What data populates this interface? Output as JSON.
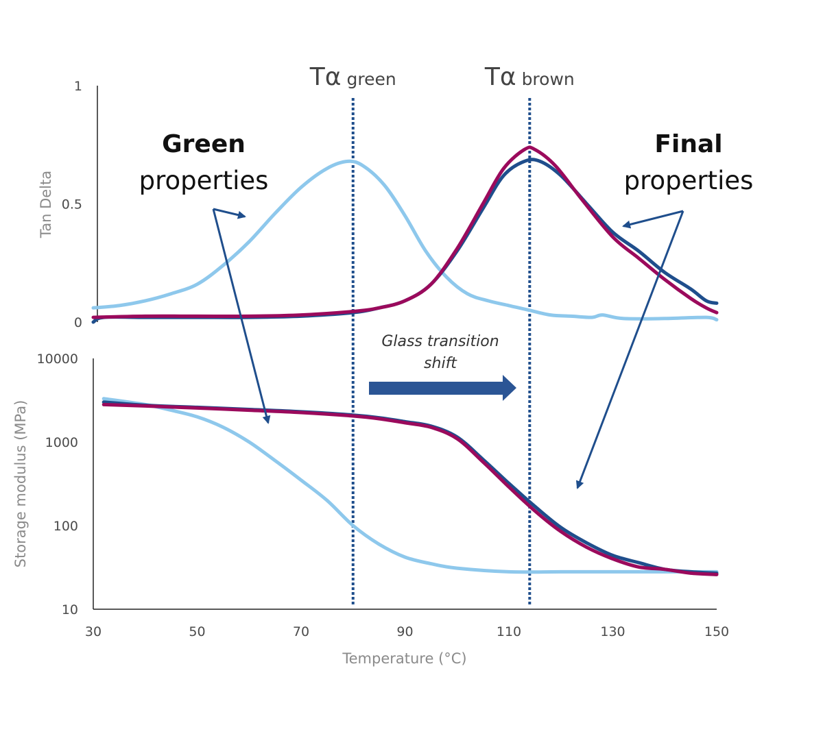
{
  "chart_data": {
    "type": "line",
    "xlabel": "Temperature (°C)",
    "x_ticks": [
      "30",
      "50",
      "70",
      "90",
      "110",
      "130",
      "150"
    ],
    "xlim": [
      30,
      150
    ],
    "colors": {
      "green": "#8ec8ec",
      "brown_dark": "#1f4e8c",
      "brown_magenta": "#9b0a5c",
      "arrow": "#1f4e8c",
      "vline": "#1f4e8c"
    },
    "panels": [
      {
        "name": "tan-delta",
        "ylabel": "Tan Delta",
        "y_ticks": [
          "0",
          "0.5",
          "1"
        ],
        "ylim": [
          0,
          1
        ],
        "scale": "linear",
        "series": [
          {
            "color": "green",
            "points": [
              [
                30,
                0.06
              ],
              [
                35,
                0.07
              ],
              [
                40,
                0.09
              ],
              [
                45,
                0.12
              ],
              [
                50,
                0.16
              ],
              [
                55,
                0.24
              ],
              [
                60,
                0.34
              ],
              [
                65,
                0.46
              ],
              [
                70,
                0.57
              ],
              [
                75,
                0.65
              ],
              [
                79,
                0.68
              ],
              [
                82,
                0.66
              ],
              [
                86,
                0.58
              ],
              [
                90,
                0.45
              ],
              [
                94,
                0.3
              ],
              [
                98,
                0.19
              ],
              [
                102,
                0.12
              ],
              [
                106,
                0.09
              ],
              [
                110,
                0.07
              ],
              [
                114,
                0.05
              ],
              [
                118,
                0.03
              ],
              [
                122,
                0.025
              ],
              [
                126,
                0.02
              ],
              [
                128,
                0.03
              ],
              [
                132,
                0.015
              ],
              [
                140,
                0.015
              ],
              [
                148,
                0.02
              ],
              [
                150,
                0.01
              ]
            ]
          },
          {
            "color": "brown_dark",
            "points": [
              [
                30,
                0.0
              ],
              [
                32,
                0.02
              ],
              [
                40,
                0.02
              ],
              [
                50,
                0.02
              ],
              [
                60,
                0.02
              ],
              [
                70,
                0.025
              ],
              [
                80,
                0.04
              ],
              [
                85,
                0.06
              ],
              [
                90,
                0.09
              ],
              [
                95,
                0.16
              ],
              [
                100,
                0.3
              ],
              [
                105,
                0.48
              ],
              [
                109,
                0.62
              ],
              [
                113,
                0.68
              ],
              [
                116,
                0.68
              ],
              [
                120,
                0.62
              ],
              [
                125,
                0.5
              ],
              [
                130,
                0.38
              ],
              [
                135,
                0.3
              ],
              [
                140,
                0.21
              ],
              [
                145,
                0.14
              ],
              [
                148,
                0.09
              ],
              [
                150,
                0.08
              ]
            ]
          },
          {
            "color": "brown_magenta",
            "points": [
              [
                30,
                0.02
              ],
              [
                40,
                0.025
              ],
              [
                50,
                0.025
              ],
              [
                60,
                0.025
              ],
              [
                70,
                0.03
              ],
              [
                80,
                0.045
              ],
              [
                85,
                0.06
              ],
              [
                90,
                0.09
              ],
              [
                95,
                0.16
              ],
              [
                100,
                0.31
              ],
              [
                105,
                0.5
              ],
              [
                109,
                0.65
              ],
              [
                113,
                0.73
              ],
              [
                115,
                0.73
              ],
              [
                119,
                0.66
              ],
              [
                124,
                0.52
              ],
              [
                130,
                0.36
              ],
              [
                135,
                0.27
              ],
              [
                140,
                0.18
              ],
              [
                145,
                0.1
              ],
              [
                148,
                0.06
              ],
              [
                150,
                0.04
              ]
            ]
          }
        ]
      },
      {
        "name": "storage-modulus",
        "ylabel": "Storage modulus (MPa)",
        "y_ticks": [
          "10",
          "100",
          "1000",
          "10000"
        ],
        "ylim": [
          10,
          10000
        ],
        "scale": "log",
        "series": [
          {
            "color": "green",
            "points": [
              [
                32,
                3300
              ],
              [
                40,
                2800
              ],
              [
                45,
                2400
              ],
              [
                50,
                2000
              ],
              [
                55,
                1500
              ],
              [
                60,
                1000
              ],
              [
                65,
                600
              ],
              [
                70,
                350
              ],
              [
                75,
                200
              ],
              [
                80,
                100
              ],
              [
                85,
                60
              ],
              [
                90,
                42
              ],
              [
                95,
                35
              ],
              [
                100,
                31
              ],
              [
                110,
                28
              ],
              [
                120,
                28
              ],
              [
                130,
                28
              ],
              [
                140,
                28
              ],
              [
                150,
                28
              ]
            ]
          },
          {
            "color": "brown_dark",
            "points": [
              [
                32,
                3000
              ],
              [
                40,
                2750
              ],
              [
                50,
                2600
              ],
              [
                60,
                2450
              ],
              [
                70,
                2300
              ],
              [
                80,
                2100
              ],
              [
                85,
                1950
              ],
              [
                90,
                1750
              ],
              [
                95,
                1550
              ],
              [
                100,
                1150
              ],
              [
                105,
                620
              ],
              [
                110,
                320
              ],
              [
                115,
                170
              ],
              [
                120,
                95
              ],
              [
                125,
                62
              ],
              [
                130,
                44
              ],
              [
                135,
                36
              ],
              [
                140,
                30
              ],
              [
                145,
                28
              ],
              [
                150,
                27
              ]
            ]
          },
          {
            "color": "brown_magenta",
            "points": [
              [
                32,
                2800
              ],
              [
                40,
                2700
              ],
              [
                50,
                2550
              ],
              [
                60,
                2400
              ],
              [
                70,
                2250
              ],
              [
                80,
                2050
              ],
              [
                85,
                1900
              ],
              [
                90,
                1700
              ],
              [
                95,
                1500
              ],
              [
                100,
                1100
              ],
              [
                105,
                580
              ],
              [
                110,
                290
              ],
              [
                115,
                150
              ],
              [
                120,
                85
              ],
              [
                125,
                55
              ],
              [
                130,
                40
              ],
              [
                135,
                32
              ],
              [
                140,
                30
              ],
              [
                145,
                27
              ],
              [
                150,
                26
              ]
            ]
          }
        ]
      }
    ],
    "vlines": [
      {
        "x": 80,
        "label_main": "Tα",
        "label_sub": "green"
      },
      {
        "x": 114,
        "label_main": "Tα",
        "label_sub": "brown"
      }
    ],
    "annotations": {
      "green_bold": "Green",
      "green_rest": "properties",
      "final_bold": "Final",
      "final_rest": "properties",
      "shift_line1": "Glass transition",
      "shift_line2": "shift"
    }
  }
}
